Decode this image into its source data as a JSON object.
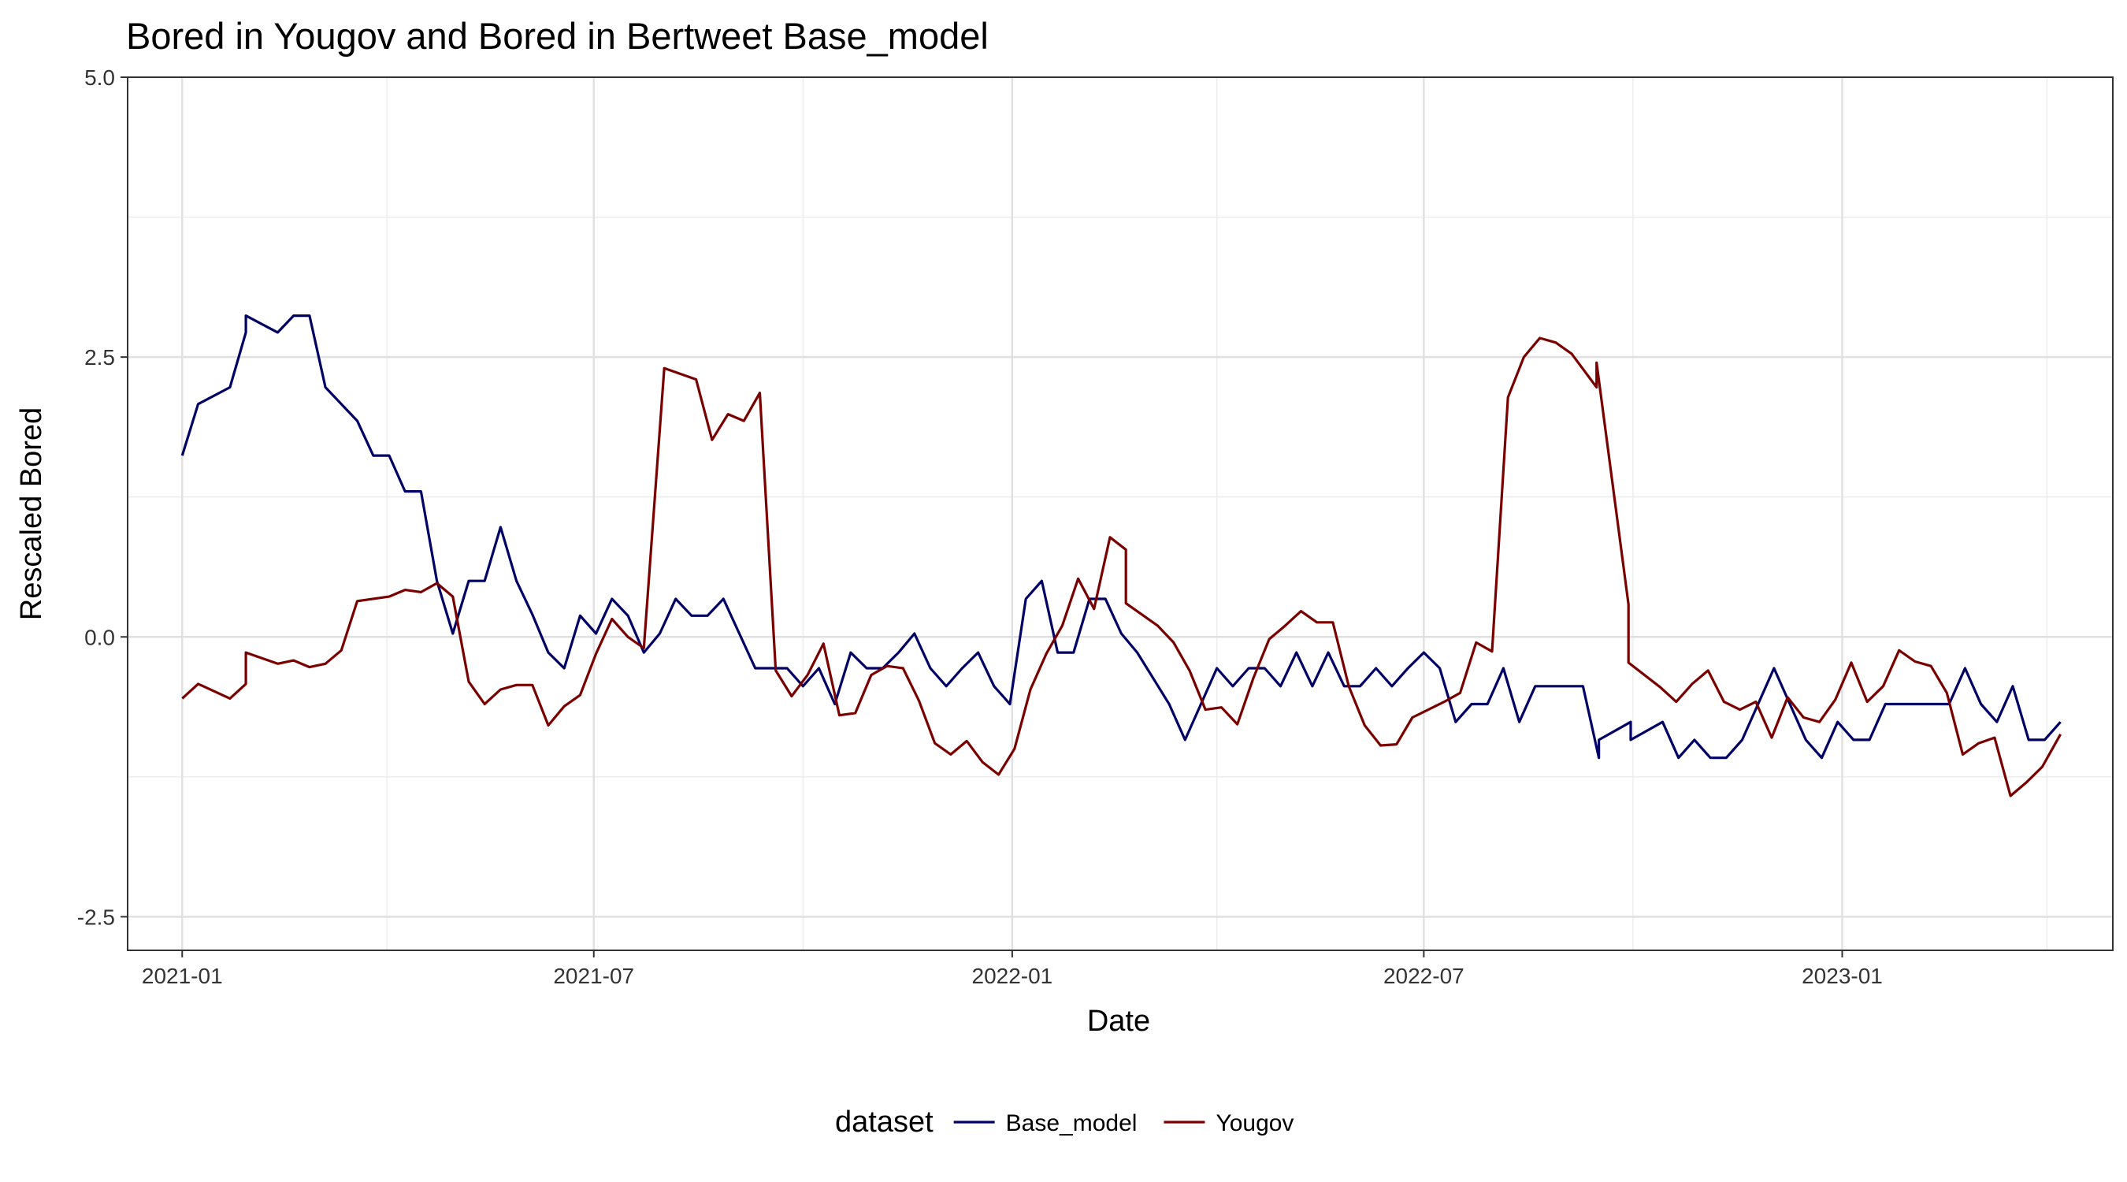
{
  "chart_data": {
    "type": "line",
    "title": "Bored  in Yougov and  Bored  in Bertweet  Base_model",
    "xlabel": "Date",
    "ylabel": "Rescaled  Bored",
    "xlim": [
      "2020-12-08",
      "2023-04-30"
    ],
    "ylim": [
      -2.8,
      5.0
    ],
    "x_ticks": [
      {
        "date": "2021-01-01",
        "label": "2021-01"
      },
      {
        "date": "2021-07-01",
        "label": "2021-07"
      },
      {
        "date": "2022-01-01",
        "label": "2022-01"
      },
      {
        "date": "2022-07-01",
        "label": "2022-07"
      },
      {
        "date": "2023-01-01",
        "label": "2023-01"
      }
    ],
    "x_minor_ticks": [
      "2021-04-01",
      "2021-10-01",
      "2022-04-01",
      "2022-10-01",
      "2023-04-01"
    ],
    "y_ticks": [
      {
        "value": -2.5,
        "label": "-2.5"
      },
      {
        "value": 0.0,
        "label": "0.0"
      },
      {
        "value": 2.5,
        "label": "2.5"
      },
      {
        "value": 5.0,
        "label": "5.0"
      }
    ],
    "y_minor_ticks": [
      -1.25,
      1.25,
      3.75
    ],
    "grid": true,
    "legend": {
      "title": "dataset",
      "position": "bottom"
    },
    "series": [
      {
        "name": "Base_model",
        "color": "#000066",
        "points": [
          [
            "2021-01-01",
            1.62
          ],
          [
            "2021-01-08",
            2.08
          ],
          [
            "2021-01-22",
            2.23
          ],
          [
            "2021-01-29",
            2.72
          ],
          [
            "2021-01-29",
            2.87
          ],
          [
            "2021-02-12",
            2.72
          ],
          [
            "2021-02-19",
            2.87
          ],
          [
            "2021-02-26",
            2.87
          ],
          [
            "2021-03-05",
            2.23
          ],
          [
            "2021-03-19",
            1.93
          ],
          [
            "2021-03-26",
            1.62
          ],
          [
            "2021-04-02",
            1.62
          ],
          [
            "2021-04-09",
            1.3
          ],
          [
            "2021-04-16",
            1.3
          ],
          [
            "2021-04-23",
            0.5
          ],
          [
            "2021-04-30",
            0.03
          ],
          [
            "2021-05-07",
            0.5
          ],
          [
            "2021-05-14",
            0.5
          ],
          [
            "2021-05-21",
            0.98
          ],
          [
            "2021-05-28",
            0.5
          ],
          [
            "2021-06-04",
            0.2
          ],
          [
            "2021-06-11",
            -0.14
          ],
          [
            "2021-06-18",
            -0.28
          ],
          [
            "2021-06-25",
            0.19
          ],
          [
            "2021-07-02",
            0.03
          ],
          [
            "2021-07-09",
            0.34
          ],
          [
            "2021-07-16",
            0.19
          ],
          [
            "2021-07-23",
            -0.14
          ],
          [
            "2021-07-30",
            0.03
          ],
          [
            "2021-08-06",
            0.34
          ],
          [
            "2021-08-13",
            0.19
          ],
          [
            "2021-08-20",
            0.19
          ],
          [
            "2021-08-27",
            0.34
          ],
          [
            "2021-09-03",
            0.03
          ],
          [
            "2021-09-10",
            -0.28
          ],
          [
            "2021-09-17",
            -0.28
          ],
          [
            "2021-09-24",
            -0.28
          ],
          [
            "2021-10-01",
            -0.44
          ],
          [
            "2021-10-08",
            -0.28
          ],
          [
            "2021-10-15",
            -0.6
          ],
          [
            "2021-10-22",
            -0.14
          ],
          [
            "2021-10-29",
            -0.28
          ],
          [
            "2021-11-05",
            -0.28
          ],
          [
            "2021-11-12",
            -0.14
          ],
          [
            "2021-11-19",
            0.03
          ],
          [
            "2021-11-26",
            -0.28
          ],
          [
            "2021-12-03",
            -0.44
          ],
          [
            "2021-12-10",
            -0.28
          ],
          [
            "2021-12-17",
            -0.14
          ],
          [
            "2021-12-24",
            -0.44
          ],
          [
            "2021-12-31",
            -0.6
          ],
          [
            "2022-01-07",
            0.34
          ],
          [
            "2022-01-14",
            0.5
          ],
          [
            "2022-01-21",
            -0.14
          ],
          [
            "2022-01-28",
            -0.14
          ],
          [
            "2022-02-04",
            0.34
          ],
          [
            "2022-02-11",
            0.34
          ],
          [
            "2022-02-18",
            0.03
          ],
          [
            "2022-02-25",
            -0.14
          ],
          [
            "2022-03-04",
            -0.37
          ],
          [
            "2022-03-11",
            -0.6
          ],
          [
            "2022-03-18",
            -0.92
          ],
          [
            "2022-03-25",
            -0.6
          ],
          [
            "2022-04-01",
            -0.28
          ],
          [
            "2022-04-08",
            -0.44
          ],
          [
            "2022-04-15",
            -0.28
          ],
          [
            "2022-04-22",
            -0.28
          ],
          [
            "2022-04-29",
            -0.44
          ],
          [
            "2022-05-06",
            -0.14
          ],
          [
            "2022-05-13",
            -0.44
          ],
          [
            "2022-05-20",
            -0.14
          ],
          [
            "2022-05-27",
            -0.44
          ],
          [
            "2022-06-03",
            -0.44
          ],
          [
            "2022-06-10",
            -0.28
          ],
          [
            "2022-06-17",
            -0.44
          ],
          [
            "2022-06-24",
            -0.28
          ],
          [
            "2022-07-01",
            -0.14
          ],
          [
            "2022-07-08",
            -0.28
          ],
          [
            "2022-07-15",
            -0.76
          ],
          [
            "2022-07-22",
            -0.6
          ],
          [
            "2022-07-29",
            -0.6
          ],
          [
            "2022-08-05",
            -0.28
          ],
          [
            "2022-08-12",
            -0.76
          ],
          [
            "2022-08-19",
            -0.44
          ],
          [
            "2022-08-26",
            -0.44
          ],
          [
            "2022-09-02",
            -0.44
          ],
          [
            "2022-09-09",
            -0.44
          ],
          [
            "2022-09-16",
            -1.08
          ],
          [
            "2022-09-16",
            -0.92
          ],
          [
            "2022-09-30",
            -0.76
          ],
          [
            "2022-09-30",
            -0.92
          ],
          [
            "2022-10-14",
            -0.76
          ],
          [
            "2022-10-21",
            -1.08
          ],
          [
            "2022-10-28",
            -0.92
          ],
          [
            "2022-11-04",
            -1.08
          ],
          [
            "2022-11-11",
            -1.08
          ],
          [
            "2022-11-18",
            -0.92
          ],
          [
            "2022-11-25",
            -0.6
          ],
          [
            "2022-12-02",
            -0.28
          ],
          [
            "2022-12-09",
            -0.6
          ],
          [
            "2022-12-16",
            -0.92
          ],
          [
            "2022-12-23",
            -1.08
          ],
          [
            "2022-12-30",
            -0.76
          ],
          [
            "2023-01-06",
            -0.92
          ],
          [
            "2023-01-13",
            -0.92
          ],
          [
            "2023-01-20",
            -0.6
          ],
          [
            "2023-01-27",
            -0.6
          ],
          [
            "2023-02-03",
            -0.6
          ],
          [
            "2023-02-10",
            -0.6
          ],
          [
            "2023-02-17",
            -0.6
          ],
          [
            "2023-02-24",
            -0.28
          ],
          [
            "2023-03-03",
            -0.6
          ],
          [
            "2023-03-10",
            -0.76
          ],
          [
            "2023-03-17",
            -0.44
          ],
          [
            "2023-03-24",
            -0.92
          ],
          [
            "2023-03-31",
            -0.92
          ],
          [
            "2023-04-07",
            -0.76
          ]
        ]
      },
      {
        "name": "Yougov",
        "color": "#7a0000",
        "points": [
          [
            "2021-01-01",
            -0.55
          ],
          [
            "2021-01-08",
            -0.42
          ],
          [
            "2021-01-22",
            -0.55
          ],
          [
            "2021-01-29",
            -0.42
          ],
          [
            "2021-01-29",
            -0.14
          ],
          [
            "2021-02-12",
            -0.24
          ],
          [
            "2021-02-19",
            -0.21
          ],
          [
            "2021-02-26",
            -0.27
          ],
          [
            "2021-03-05",
            -0.24
          ],
          [
            "2021-03-12",
            -0.12
          ],
          [
            "2021-03-19",
            0.32
          ],
          [
            "2021-04-02",
            0.36
          ],
          [
            "2021-04-09",
            0.42
          ],
          [
            "2021-04-16",
            0.4
          ],
          [
            "2021-04-23",
            0.48
          ],
          [
            "2021-04-30",
            0.36
          ],
          [
            "2021-05-07",
            -0.4
          ],
          [
            "2021-05-14",
            -0.6
          ],
          [
            "2021-05-21",
            -0.47
          ],
          [
            "2021-05-28",
            -0.43
          ],
          [
            "2021-06-04",
            -0.43
          ],
          [
            "2021-06-11",
            -0.79
          ],
          [
            "2021-06-18",
            -0.62
          ],
          [
            "2021-06-25",
            -0.52
          ],
          [
            "2021-07-02",
            -0.15
          ],
          [
            "2021-07-09",
            0.16
          ],
          [
            "2021-07-16",
            0.0
          ],
          [
            "2021-07-23",
            -0.1
          ],
          [
            "2021-08-01",
            2.4
          ],
          [
            "2021-08-08",
            2.35
          ],
          [
            "2021-08-15",
            2.3
          ],
          [
            "2021-08-22",
            1.76
          ],
          [
            "2021-08-29",
            1.99
          ],
          [
            "2021-09-05",
            1.93
          ],
          [
            "2021-09-12",
            2.18
          ],
          [
            "2021-09-19",
            -0.3
          ],
          [
            "2021-09-26",
            -0.53
          ],
          [
            "2021-10-03",
            -0.34
          ],
          [
            "2021-10-10",
            -0.06
          ],
          [
            "2021-10-17",
            -0.7
          ],
          [
            "2021-10-24",
            -0.68
          ],
          [
            "2021-10-31",
            -0.34
          ],
          [
            "2021-11-07",
            -0.26
          ],
          [
            "2021-11-14",
            -0.28
          ],
          [
            "2021-11-21",
            -0.57
          ],
          [
            "2021-11-28",
            -0.95
          ],
          [
            "2021-12-05",
            -1.05
          ],
          [
            "2021-12-12",
            -0.93
          ],
          [
            "2021-12-19",
            -1.12
          ],
          [
            "2021-12-26",
            -1.23
          ],
          [
            "2022-01-02",
            -1.0
          ],
          [
            "2022-01-09",
            -0.47
          ],
          [
            "2022-01-16",
            -0.15
          ],
          [
            "2022-01-23",
            0.1
          ],
          [
            "2022-01-30",
            0.52
          ],
          [
            "2022-02-06",
            0.25
          ],
          [
            "2022-02-13",
            0.89
          ],
          [
            "2022-02-20",
            0.78
          ],
          [
            "2022-02-20",
            0.3
          ],
          [
            "2022-03-06",
            0.1
          ],
          [
            "2022-03-13",
            -0.05
          ],
          [
            "2022-03-20",
            -0.3
          ],
          [
            "2022-03-27",
            -0.65
          ],
          [
            "2022-04-03",
            -0.63
          ],
          [
            "2022-04-10",
            -0.78
          ],
          [
            "2022-04-17",
            -0.37
          ],
          [
            "2022-04-24",
            -0.02
          ],
          [
            "2022-05-01",
            0.1
          ],
          [
            "2022-05-08",
            0.23
          ],
          [
            "2022-05-15",
            0.13
          ],
          [
            "2022-05-22",
            0.13
          ],
          [
            "2022-05-29",
            -0.44
          ],
          [
            "2022-06-05",
            -0.79
          ],
          [
            "2022-06-12",
            -0.97
          ],
          [
            "2022-06-19",
            -0.96
          ],
          [
            "2022-06-26",
            -0.72
          ],
          [
            "2022-07-03",
            -0.65
          ],
          [
            "2022-07-10",
            -0.58
          ],
          [
            "2022-07-17",
            -0.5
          ],
          [
            "2022-07-24",
            -0.05
          ],
          [
            "2022-07-31",
            -0.13
          ],
          [
            "2022-08-07",
            2.14
          ],
          [
            "2022-08-14",
            2.5
          ],
          [
            "2022-08-21",
            2.67
          ],
          [
            "2022-08-28",
            2.63
          ],
          [
            "2022-09-04",
            2.53
          ],
          [
            "2022-09-15",
            2.23
          ],
          [
            "2022-09-15",
            2.45
          ],
          [
            "2022-09-29",
            0.29
          ],
          [
            "2022-09-29",
            -0.23
          ],
          [
            "2022-10-13",
            -0.45
          ],
          [
            "2022-10-20",
            -0.58
          ],
          [
            "2022-10-27",
            -0.42
          ],
          [
            "2022-11-03",
            -0.3
          ],
          [
            "2022-11-10",
            -0.58
          ],
          [
            "2022-11-17",
            -0.65
          ],
          [
            "2022-11-24",
            -0.58
          ],
          [
            "2022-12-01",
            -0.9
          ],
          [
            "2022-12-08",
            -0.54
          ],
          [
            "2022-12-15",
            -0.72
          ],
          [
            "2022-12-22",
            -0.76
          ],
          [
            "2022-12-29",
            -0.56
          ],
          [
            "2023-01-05",
            -0.23
          ],
          [
            "2023-01-12",
            -0.58
          ],
          [
            "2023-01-19",
            -0.44
          ],
          [
            "2023-01-26",
            -0.12
          ],
          [
            "2023-02-02",
            -0.22
          ],
          [
            "2023-02-09",
            -0.26
          ],
          [
            "2023-02-16",
            -0.5
          ],
          [
            "2023-02-23",
            -1.05
          ],
          [
            "2023-03-02",
            -0.95
          ],
          [
            "2023-03-09",
            -0.9
          ],
          [
            "2023-03-16",
            -1.42
          ],
          [
            "2023-03-23",
            -1.3
          ],
          [
            "2023-03-30",
            -1.16
          ],
          [
            "2023-04-07",
            -0.87
          ]
        ]
      }
    ]
  }
}
